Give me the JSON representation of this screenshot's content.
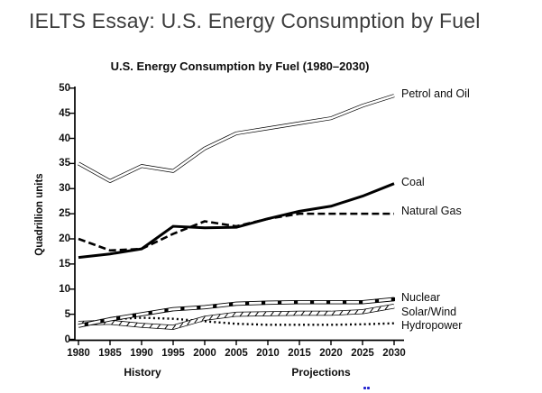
{
  "page": {
    "title": "IELTS Essay: U.S. Energy Consumption by Fuel"
  },
  "chart_data": {
    "type": "line",
    "title": "U.S. Energy Consumption by Fuel (1980–2030)",
    "ylabel": "Quadrillion units",
    "xlabel": "",
    "xlabel_groups": {
      "history": "History",
      "projections": "Projections"
    },
    "x": [
      1980,
      1985,
      1990,
      1995,
      2000,
      2005,
      2010,
      2015,
      2020,
      2025,
      2030
    ],
    "y_ticks": [
      0,
      5,
      10,
      15,
      20,
      25,
      30,
      35,
      40,
      45,
      50
    ],
    "ylim": [
      0,
      50
    ],
    "grid": false,
    "legend_position": "labels-at-line-ends-right",
    "line_color": "#000000",
    "series": [
      {
        "name": "Petrol and Oil",
        "style": "double",
        "values": [
          35,
          31.5,
          34.5,
          33.5,
          38,
          41,
          42,
          43,
          44,
          46.5,
          48.5
        ]
      },
      {
        "name": "Coal",
        "style": "solid",
        "values": [
          16.3,
          17,
          18,
          22.5,
          22.2,
          22.3,
          24,
          25.5,
          26.5,
          28.5,
          31
        ]
      },
      {
        "name": "Natural Gas",
        "style": "dashed",
        "values": [
          20,
          17.7,
          18,
          21,
          23.5,
          22.5,
          24,
          25,
          25,
          25,
          25
        ]
      },
      {
        "name": "Nuclear",
        "style": "squares",
        "values": [
          2.7,
          4,
          5,
          6,
          6.4,
          7.1,
          7.3,
          7.4,
          7.4,
          7.4,
          8
        ]
      },
      {
        "name": "Solar/Wind",
        "style": "hatch",
        "values": [
          3.2,
          3.4,
          2.8,
          2.4,
          4.2,
          5,
          5.1,
          5.2,
          5.2,
          5.5,
          6.6
        ]
      },
      {
        "name": "Hydropower",
        "style": "dotted",
        "values": [
          3.2,
          4,
          4.3,
          4.1,
          3.6,
          3.1,
          2.9,
          2.9,
          2.9,
          3,
          3.2
        ]
      }
    ]
  },
  "artifacts": {
    "link_fragment_color": "#2323cf"
  }
}
